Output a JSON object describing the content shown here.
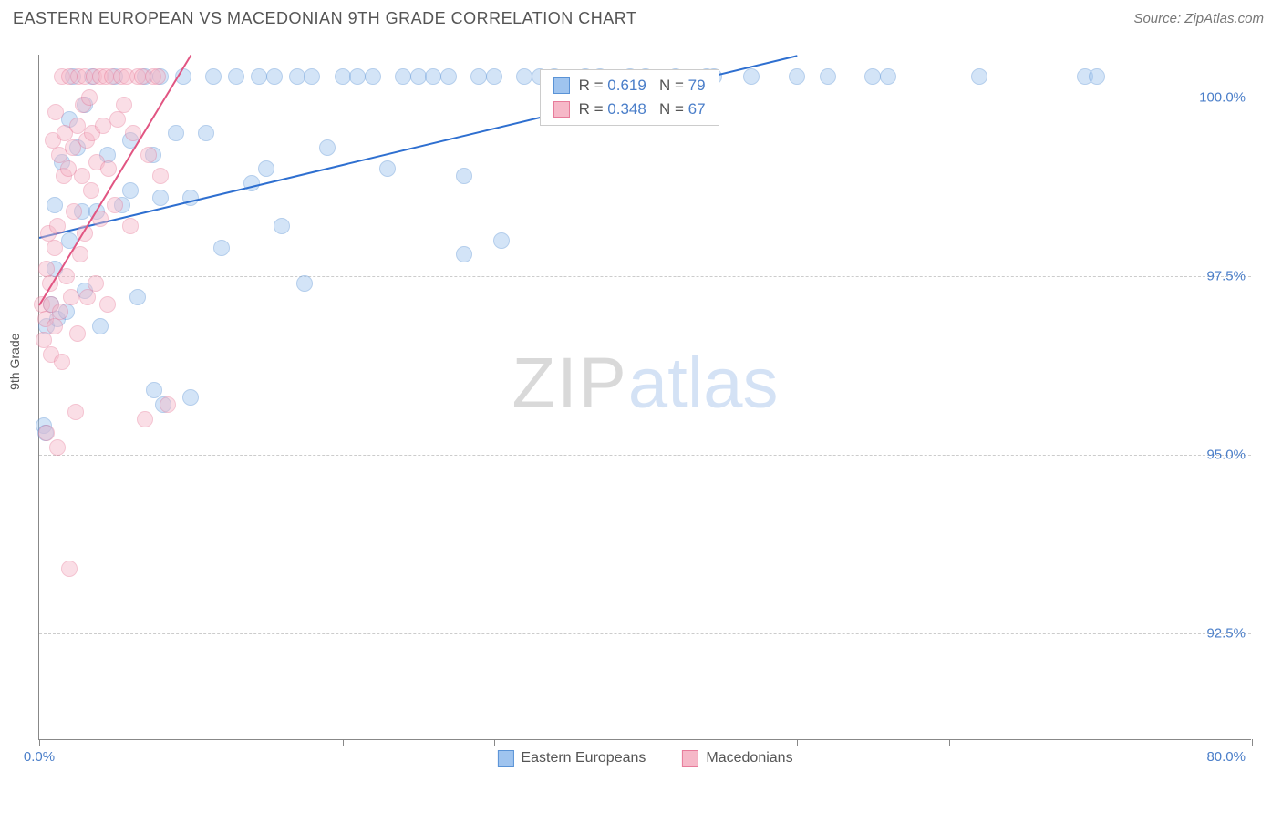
{
  "header": {
    "title": "EASTERN EUROPEAN VS MACEDONIAN 9TH GRADE CORRELATION CHART",
    "source": "Source: ZipAtlas.com"
  },
  "chart": {
    "type": "scatter",
    "ylabel": "9th Grade",
    "xlim": [
      0,
      80
    ],
    "ylim": [
      91.0,
      100.6
    ],
    "xtick_positions": [
      0,
      10,
      20,
      30,
      40,
      50,
      60,
      70,
      80
    ],
    "xtick_labels": {
      "0": "0.0%",
      "80": "80.0%"
    },
    "ytick_positions": [
      92.5,
      95.0,
      97.5,
      100.0
    ],
    "ytick_labels": [
      "92.5%",
      "95.0%",
      "97.5%",
      "100.0%"
    ],
    "grid_color": "#cccccc",
    "axis_color": "#888888",
    "background_color": "#ffffff",
    "tick_label_color": "#4a7ec9",
    "marker_radius": 9,
    "marker_opacity": 0.45,
    "series": [
      {
        "name": "Eastern Europeans",
        "color_fill": "#9fc4ef",
        "color_stroke": "#5a93d6",
        "R": "0.619",
        "N": "79",
        "trend": {
          "x1": 0,
          "y1": 98.05,
          "x2": 50,
          "y2": 100.6,
          "color": "#2e6fd0",
          "width": 2
        },
        "points": [
          [
            0.3,
            95.4
          ],
          [
            0.4,
            95.3
          ],
          [
            0.5,
            96.8
          ],
          [
            0.8,
            97.1
          ],
          [
            1.0,
            98.5
          ],
          [
            1.0,
            97.6
          ],
          [
            1.2,
            96.9
          ],
          [
            1.5,
            99.1
          ],
          [
            1.8,
            97.0
          ],
          [
            2.0,
            99.7
          ],
          [
            2.0,
            98.0
          ],
          [
            2.2,
            100.3
          ],
          [
            2.5,
            99.3
          ],
          [
            2.8,
            98.4
          ],
          [
            3.0,
            99.9
          ],
          [
            3.0,
            97.3
          ],
          [
            3.5,
            100.3
          ],
          [
            3.8,
            98.4
          ],
          [
            4.0,
            96.8
          ],
          [
            4.5,
            99.2
          ],
          [
            5.0,
            100.3
          ],
          [
            5.5,
            98.5
          ],
          [
            6.0,
            98.7
          ],
          [
            6.0,
            99.4
          ],
          [
            6.5,
            97.2
          ],
          [
            7.0,
            100.3
          ],
          [
            7.5,
            99.2
          ],
          [
            7.6,
            95.9
          ],
          [
            8.0,
            100.3
          ],
          [
            8.0,
            98.6
          ],
          [
            8.2,
            95.7
          ],
          [
            9.0,
            99.5
          ],
          [
            9.5,
            100.3
          ],
          [
            10.0,
            98.6
          ],
          [
            10.0,
            95.8
          ],
          [
            11.0,
            99.5
          ],
          [
            11.5,
            100.3
          ],
          [
            12.0,
            97.9
          ],
          [
            13.0,
            100.3
          ],
          [
            14.0,
            98.8
          ],
          [
            14.5,
            100.3
          ],
          [
            15.0,
            99.0
          ],
          [
            15.5,
            100.3
          ],
          [
            16.0,
            98.2
          ],
          [
            17.0,
            100.3
          ],
          [
            17.5,
            97.4
          ],
          [
            18.0,
            100.3
          ],
          [
            19.0,
            99.3
          ],
          [
            20.0,
            100.3
          ],
          [
            21.0,
            100.3
          ],
          [
            22.0,
            100.3
          ],
          [
            23.0,
            99.0
          ],
          [
            24.0,
            100.3
          ],
          [
            25.0,
            100.3
          ],
          [
            26.0,
            100.3
          ],
          [
            27.0,
            100.3
          ],
          [
            28.0,
            98.9
          ],
          [
            29.0,
            100.3
          ],
          [
            30.0,
            100.3
          ],
          [
            30.5,
            98.0
          ],
          [
            32.0,
            100.3
          ],
          [
            33.0,
            100.3
          ],
          [
            34.0,
            100.3
          ],
          [
            36.0,
            100.3
          ],
          [
            37.0,
            100.3
          ],
          [
            39.0,
            100.3
          ],
          [
            40.0,
            100.3
          ],
          [
            42.0,
            100.3
          ],
          [
            44.0,
            100.3
          ],
          [
            44.5,
            100.3
          ],
          [
            47.0,
            100.3
          ],
          [
            50.0,
            100.3
          ],
          [
            52.0,
            100.3
          ],
          [
            55.0,
            100.3
          ],
          [
            56.0,
            100.3
          ],
          [
            62.0,
            100.3
          ],
          [
            69.0,
            100.3
          ],
          [
            69.8,
            100.3
          ],
          [
            28.0,
            97.8
          ]
        ]
      },
      {
        "name": "Macedonians",
        "color_fill": "#f6b8c8",
        "color_stroke": "#e77b9a",
        "R": "0.348",
        "N": "67",
        "trend": {
          "x1": 0,
          "y1": 97.1,
          "x2": 10,
          "y2": 100.6,
          "color": "#e15582",
          "width": 2
        },
        "points": [
          [
            0.2,
            97.1
          ],
          [
            0.3,
            96.6
          ],
          [
            0.4,
            96.9
          ],
          [
            0.5,
            97.6
          ],
          [
            0.5,
            95.3
          ],
          [
            0.6,
            98.1
          ],
          [
            0.7,
            97.4
          ],
          [
            0.8,
            96.4
          ],
          [
            0.8,
            97.1
          ],
          [
            0.9,
            99.4
          ],
          [
            1.0,
            97.9
          ],
          [
            1.0,
            96.8
          ],
          [
            1.1,
            99.8
          ],
          [
            1.2,
            95.1
          ],
          [
            1.2,
            98.2
          ],
          [
            1.3,
            99.2
          ],
          [
            1.4,
            97.0
          ],
          [
            1.5,
            100.3
          ],
          [
            1.5,
            96.3
          ],
          [
            1.6,
            98.9
          ],
          [
            1.7,
            99.5
          ],
          [
            1.8,
            97.5
          ],
          [
            1.9,
            99.0
          ],
          [
            2.0,
            100.3
          ],
          [
            2.0,
            93.4
          ],
          [
            2.1,
            97.2
          ],
          [
            2.2,
            99.3
          ],
          [
            2.3,
            98.4
          ],
          [
            2.4,
            95.6
          ],
          [
            2.5,
            99.6
          ],
          [
            2.5,
            96.7
          ],
          [
            2.6,
            100.3
          ],
          [
            2.7,
            97.8
          ],
          [
            2.8,
            98.9
          ],
          [
            2.9,
            99.9
          ],
          [
            3.0,
            100.3
          ],
          [
            3.0,
            98.1
          ],
          [
            3.1,
            99.4
          ],
          [
            3.2,
            97.2
          ],
          [
            3.3,
            100.0
          ],
          [
            3.4,
            98.7
          ],
          [
            3.5,
            99.5
          ],
          [
            3.6,
            100.3
          ],
          [
            3.7,
            97.4
          ],
          [
            3.8,
            99.1
          ],
          [
            4.0,
            100.3
          ],
          [
            4.0,
            98.3
          ],
          [
            4.2,
            99.6
          ],
          [
            4.4,
            100.3
          ],
          [
            4.5,
            97.1
          ],
          [
            4.6,
            99.0
          ],
          [
            4.8,
            100.3
          ],
          [
            5.0,
            98.5
          ],
          [
            5.2,
            99.7
          ],
          [
            5.4,
            100.3
          ],
          [
            5.6,
            99.9
          ],
          [
            5.8,
            100.3
          ],
          [
            6.0,
            98.2
          ],
          [
            6.2,
            99.5
          ],
          [
            6.5,
            100.3
          ],
          [
            6.8,
            100.3
          ],
          [
            7.0,
            95.5
          ],
          [
            7.2,
            99.2
          ],
          [
            7.5,
            100.3
          ],
          [
            8.5,
            95.7
          ],
          [
            8.0,
            98.9
          ],
          [
            7.8,
            100.3
          ]
        ]
      }
    ],
    "watermark": {
      "part1": "ZIP",
      "part2": "atlas"
    },
    "bottom_legend": [
      {
        "label": "Eastern Europeans",
        "fill": "#9fc4ef",
        "stroke": "#5a93d6"
      },
      {
        "label": "Macedonians",
        "fill": "#f6b8c8",
        "stroke": "#e77b9a"
      }
    ]
  }
}
